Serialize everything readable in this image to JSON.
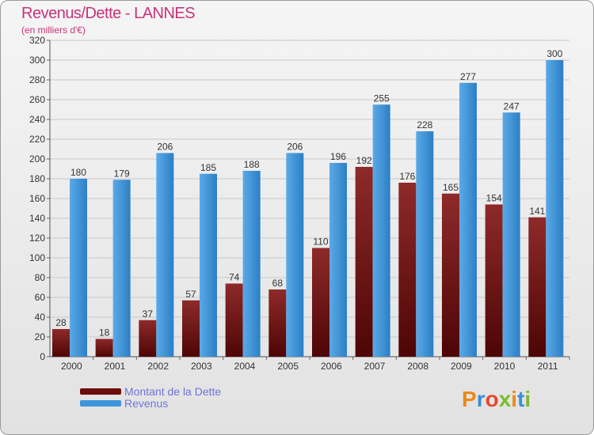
{
  "title": "Revenus/Dette - LANNES",
  "subtitle": "(en milliers d'€)",
  "colors": {
    "dette": "#7a1515",
    "revenus": "#3d95db",
    "title": "#c8337a",
    "legend_text": "#6f74d8"
  },
  "legend": [
    {
      "label": "Montant de la Dette",
      "color": "#6b0d0d"
    },
    {
      "label": "Revenus",
      "color": "#3d95db"
    }
  ],
  "logo": {
    "text": "Proxiti",
    "letters": [
      {
        "ch": "P",
        "color": "#e98b1c"
      },
      {
        "ch": "r",
        "color": "#3a8fd6"
      },
      {
        "ch": "o",
        "color": "#e34a2c"
      },
      {
        "ch": "x",
        "color": "#7bbb2f"
      },
      {
        "ch": "i",
        "color": "#e98b1c"
      },
      {
        "ch": "t",
        "color": "#3a8fd6"
      },
      {
        "ch": "i",
        "color": "#7bbb2f"
      }
    ]
  },
  "chart_data": {
    "type": "bar",
    "title": "Revenus/Dette - LANNES",
    "subtitle": "(en milliers d'€)",
    "categories": [
      "2000",
      "2001",
      "2002",
      "2003",
      "2004",
      "2005",
      "2006",
      "2007",
      "2008",
      "2009",
      "2010",
      "2011"
    ],
    "series": [
      {
        "name": "Montant de la Dette",
        "values": [
          28,
          18,
          37,
          57,
          74,
          68,
          110,
          192,
          176,
          165,
          154,
          141
        ]
      },
      {
        "name": "Revenus",
        "values": [
          180,
          179,
          206,
          185,
          188,
          206,
          196,
          255,
          228,
          277,
          247,
          300
        ]
      }
    ],
    "ylim": [
      0,
      320
    ],
    "ytick_step": 20,
    "grid": true,
    "legend_position": "bottom-left"
  }
}
